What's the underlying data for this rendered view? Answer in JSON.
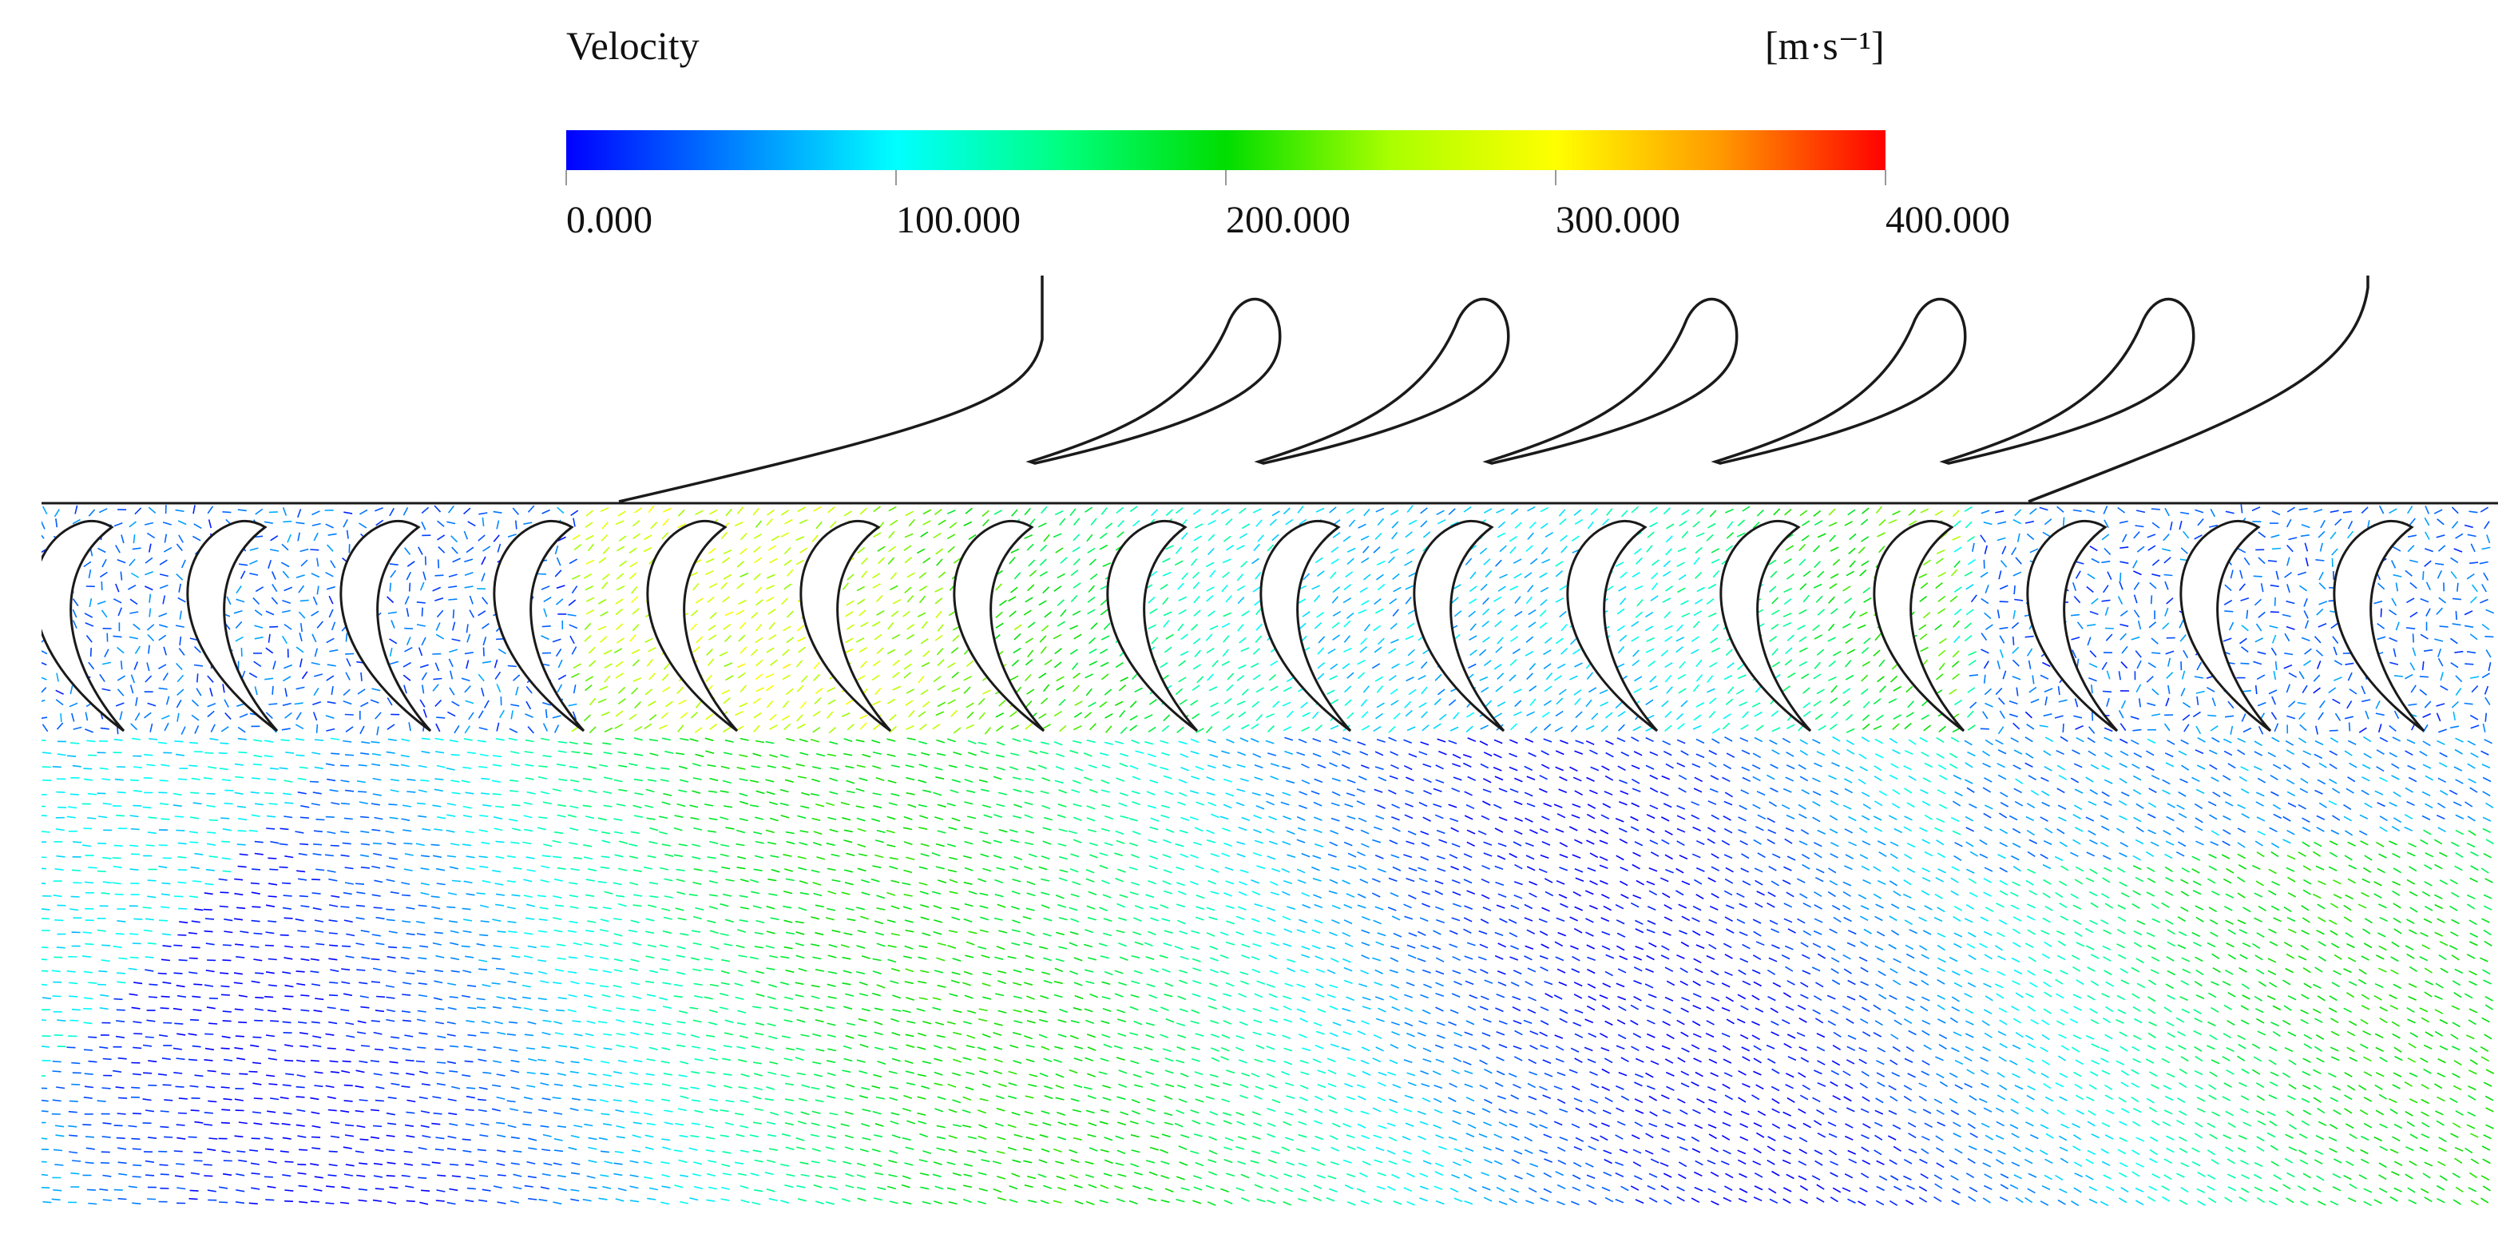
{
  "legend": {
    "title": "Velocity",
    "unit": "[m·s⁻¹]",
    "ticks": [
      "0.000",
      "100.000",
      "200.000",
      "300.000",
      "400.000"
    ],
    "range": [
      0,
      400
    ],
    "colormap": [
      "#0000ff",
      "#0080ff",
      "#00ffff",
      "#00ff80",
      "#00dd00",
      "#aaff00",
      "#ffff00",
      "#ff9900",
      "#ff0000"
    ]
  },
  "colors": {
    "blade_outline": "#1a1a1a",
    "blade_fill": "#ffffff",
    "background": "#ffffff"
  }
}
